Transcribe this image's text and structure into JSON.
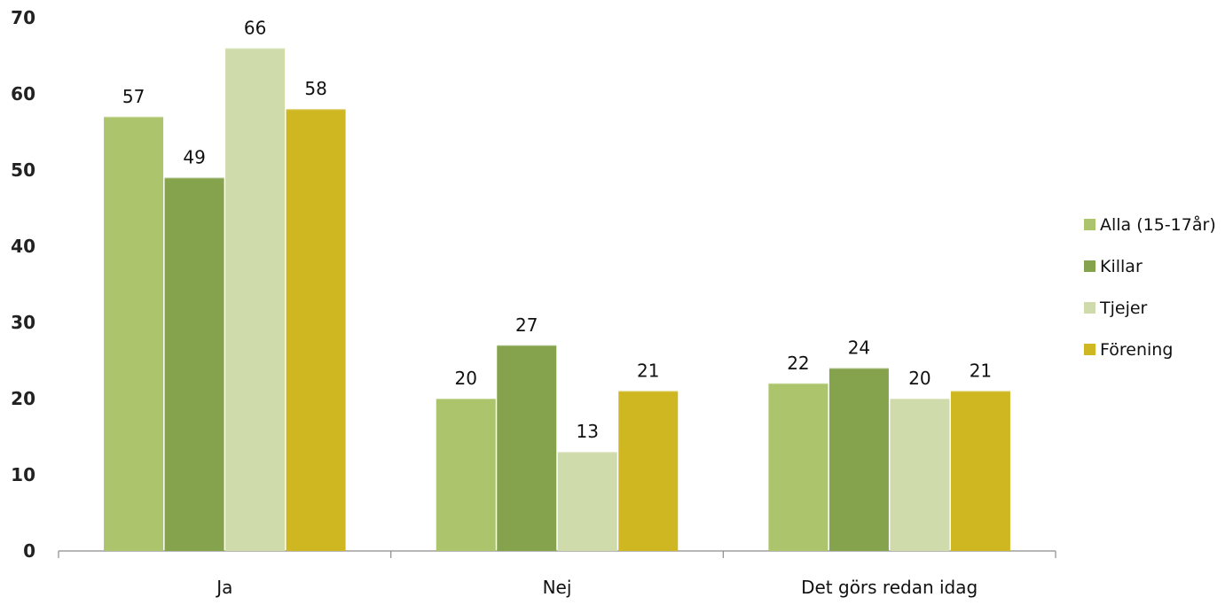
{
  "chart_data": {
    "type": "bar",
    "categories": [
      "Ja",
      "Nej",
      "Det görs redan idag"
    ],
    "series": [
      {
        "name": "Alla (15-17år)",
        "color": "#acc46b",
        "values": [
          57,
          20,
          22
        ],
        "labels": [
          "57",
          "20",
          "22"
        ]
      },
      {
        "name": "Killar",
        "color": "#85a34d",
        "values": [
          49,
          27,
          24
        ],
        "labels": [
          "49",
          "27",
          "24"
        ]
      },
      {
        "name": "Tjejer",
        "color": "#d0dbab",
        "values": [
          66,
          13,
          20
        ],
        "labels": [
          "66",
          "13",
          "20"
        ]
      },
      {
        "name": "Förening",
        "color": "#cfb722",
        "values": [
          58,
          21,
          21
        ],
        "labels": [
          "58",
          "21",
          "21"
        ]
      }
    ],
    "ylim": [
      0,
      70
    ],
    "yticks": [
      0,
      10,
      20,
      30,
      40,
      50,
      60,
      70
    ],
    "grid": false,
    "legend_position": "right",
    "title": "",
    "xlabel": "",
    "ylabel": ""
  }
}
